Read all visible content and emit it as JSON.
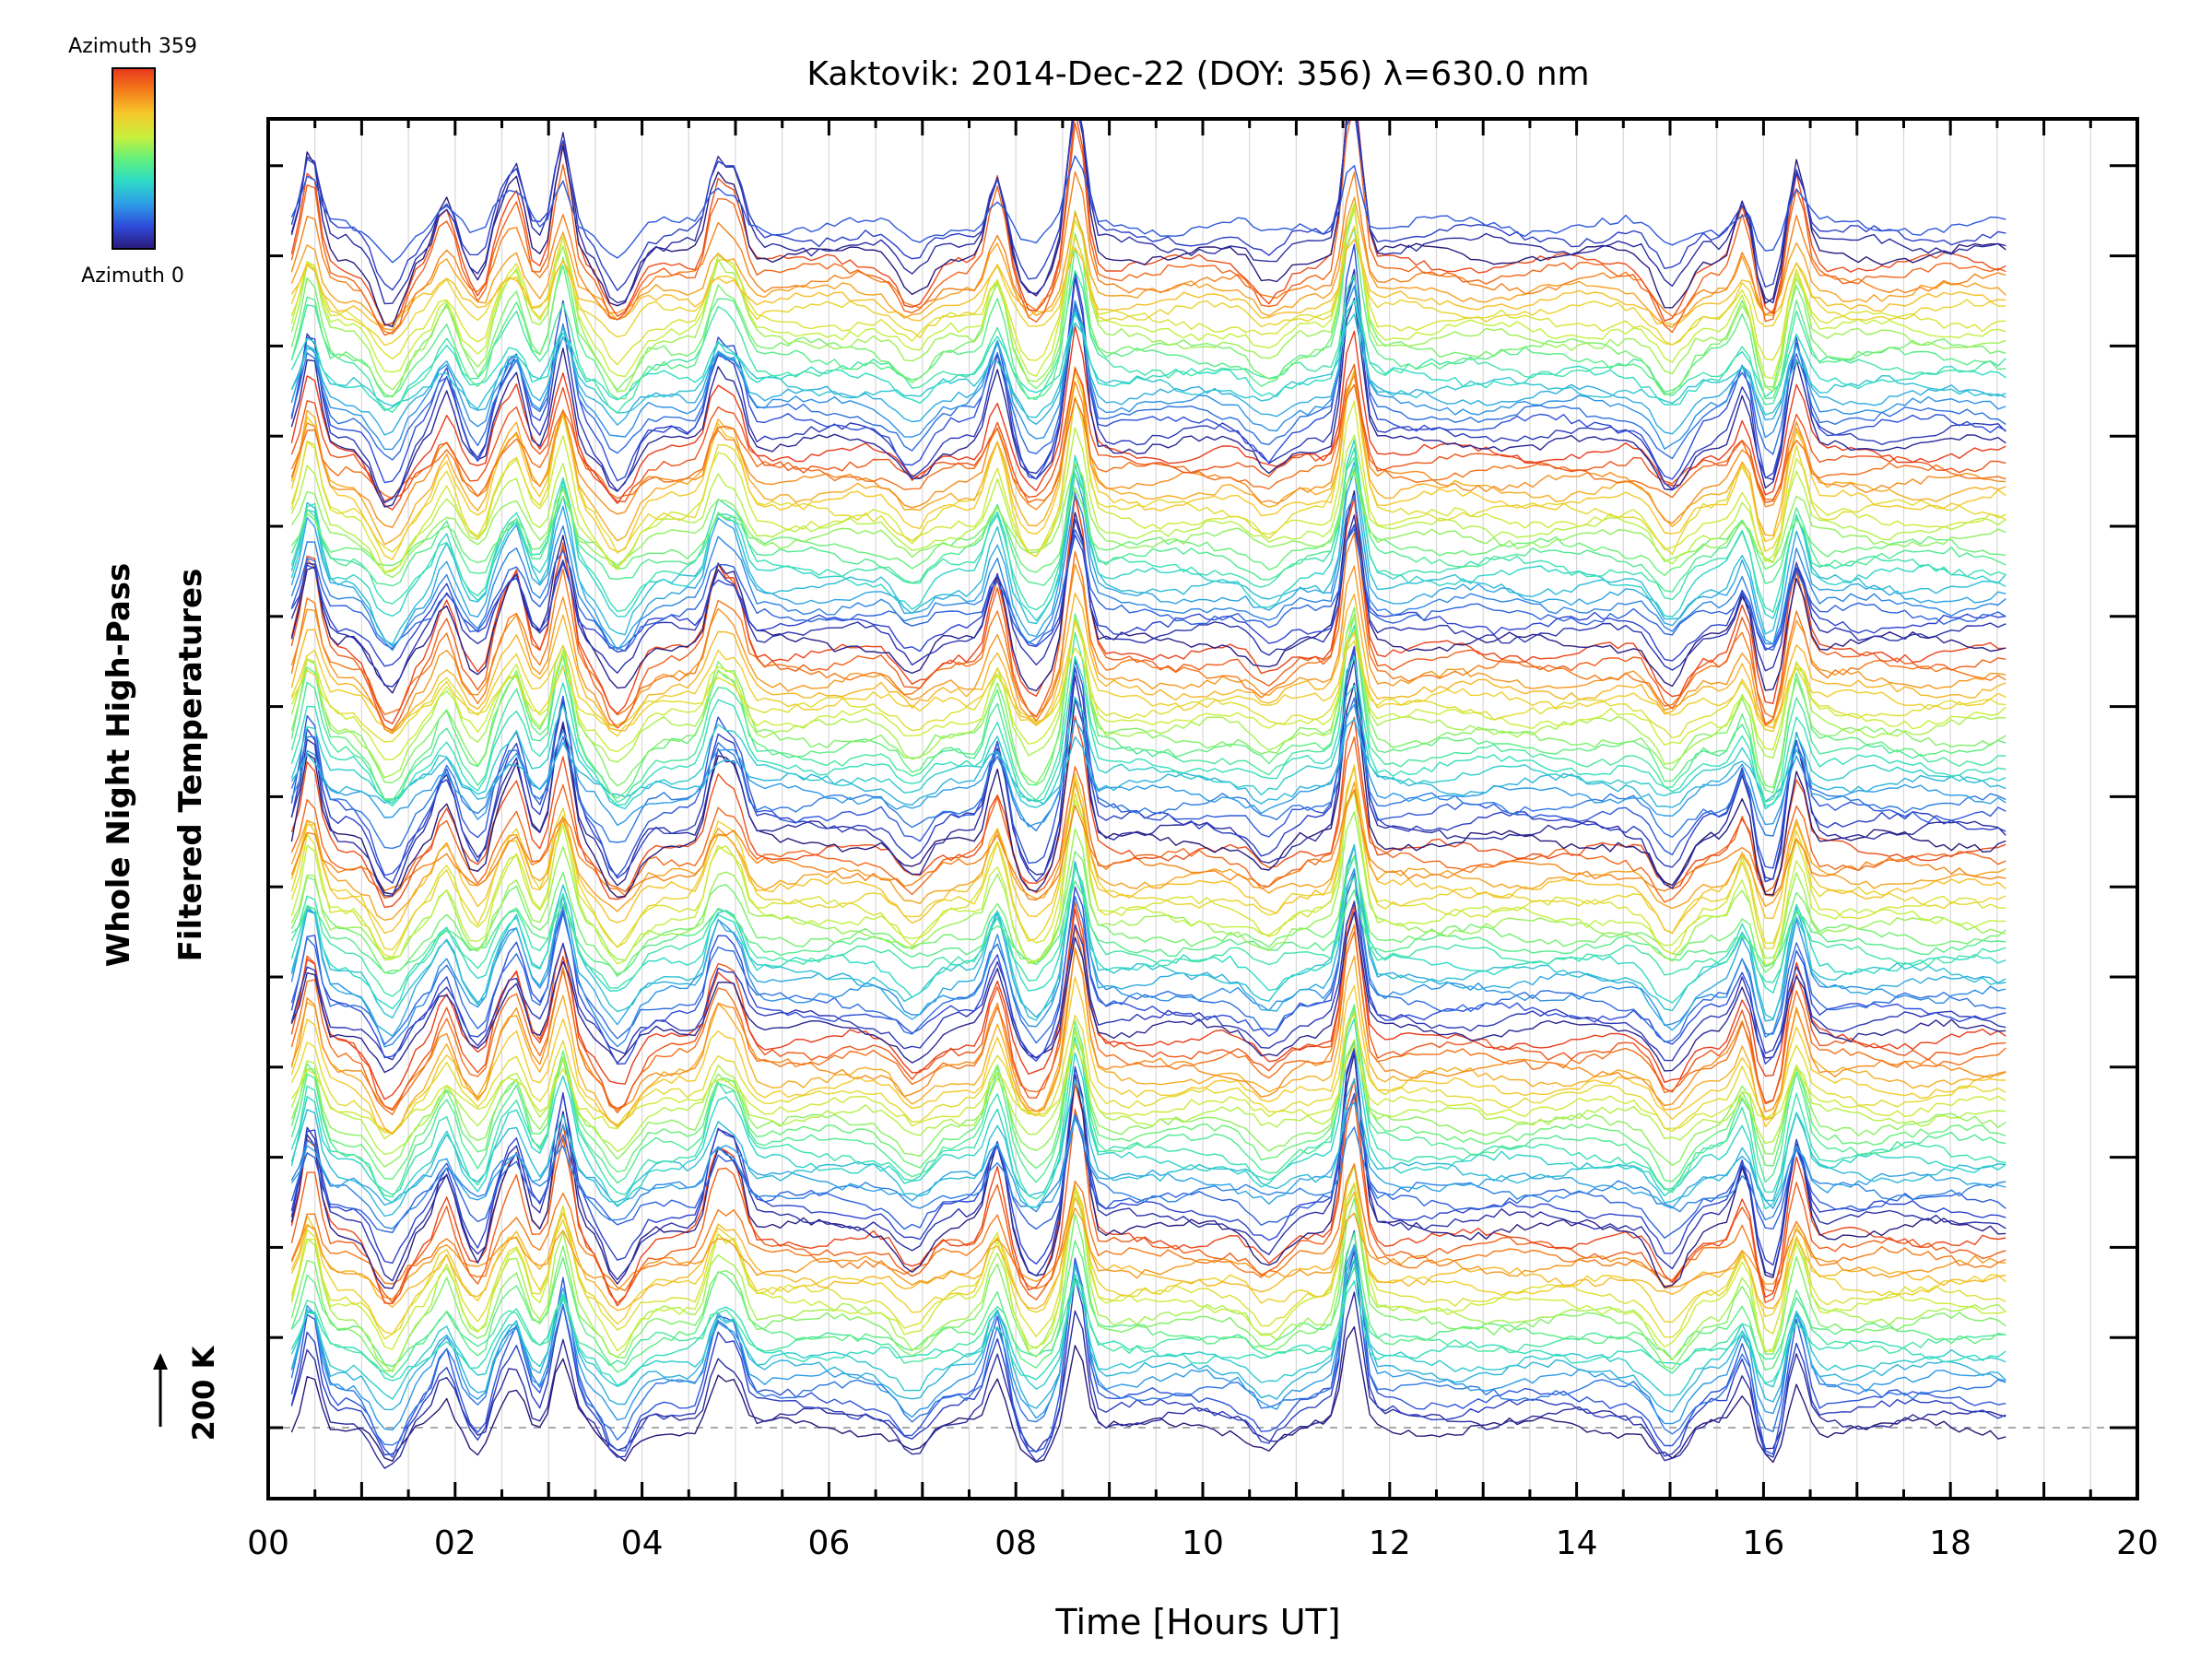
{
  "chart_data": {
    "type": "line",
    "title": "Kaktovik: 2014-Dec-22 (DOY: 356) λ=630.0 nm",
    "xlabel": "Time [Hours UT]",
    "ylabel_line1": "Whole Night High-Pass",
    "ylabel_line2": "Filtered Temperatures",
    "xlim": [
      0,
      20
    ],
    "x_ticks": [
      "00",
      "02",
      "04",
      "06",
      "08",
      "10",
      "12",
      "14",
      "16",
      "18",
      "20"
    ],
    "scale_bar_label": "200 K",
    "reference_line": "dashed baseline at the lowest trace offset",
    "x_range_data": [
      0.25,
      18.6
    ],
    "series_count": 128,
    "series_description": "Stacked high-pass filtered temperature traces, one per azimuth bin (0-359 deg), each trace offset vertically; line color encodes azimuth",
    "spike_times_hours": [
      0.45,
      1.9,
      2.45,
      2.65,
      3.15,
      4.8,
      5.0,
      7.8,
      8.65,
      11.6,
      15.8,
      16.35
    ],
    "dip_times_hours": [
      1.3,
      2.35,
      3.75,
      6.9,
      8.2,
      10.7,
      15.0,
      16.05
    ],
    "colorbar": {
      "label_top": "Azimuth 359",
      "label_bottom": "Azimuth 0",
      "colormap": "rainbow",
      "colors": [
        "#e8361e",
        "#f47a1a",
        "#f6c82a",
        "#c8f03c",
        "#64f07a",
        "#2edcc4",
        "#2e9ee8",
        "#2e48d8",
        "#2a1a78"
      ]
    },
    "grid": "vertical lines each half hour",
    "colors": {
      "axis": "#000000",
      "grid": "#d8d8d8",
      "reference": "#aaaaaa"
    }
  }
}
